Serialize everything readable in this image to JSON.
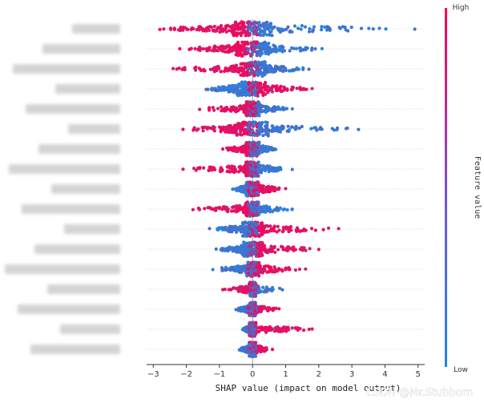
{
  "chart_data": {
    "type": "scatter",
    "subtype": "shap-beeswarm",
    "title": "",
    "xlabel": "SHAP value (impact on model output)",
    "ylabel": "",
    "xlim": [
      -3.2,
      5.2
    ],
    "xticks": [
      -3,
      -2,
      -1,
      0,
      1,
      2,
      3,
      4,
      5
    ],
    "grid": false,
    "colorbar": {
      "label": "Feature value",
      "high_label": "High",
      "low_label": "Low",
      "low_color": "#1e88e5",
      "high_color": "#ff0052"
    },
    "feature_labels_obscured": true,
    "features": [
      {
        "rank": 1,
        "min": -2.8,
        "max": 4.9,
        "core": [
          -0.6,
          0.6
        ],
        "high_side": "negative"
      },
      {
        "rank": 2,
        "min": -2.2,
        "max": 2.1,
        "core": [
          -0.5,
          0.5
        ],
        "high_side": "negative"
      },
      {
        "rank": 3,
        "min": -2.4,
        "max": 1.7,
        "core": [
          -0.4,
          0.4
        ],
        "high_side": "negative"
      },
      {
        "rank": 4,
        "min": -1.4,
        "max": 1.8,
        "core": [
          -0.5,
          0.4
        ],
        "high_side": "positive"
      },
      {
        "rank": 5,
        "min": -1.6,
        "max": 1.2,
        "core": [
          -0.2,
          0.2
        ],
        "high_side": "negative"
      },
      {
        "rank": 6,
        "min": -2.1,
        "max": 3.2,
        "core": [
          -0.5,
          0.5
        ],
        "high_side": "negative"
      },
      {
        "rank": 7,
        "min": -0.9,
        "max": 0.7,
        "core": [
          -0.2,
          0.2
        ],
        "high_side": "negative"
      },
      {
        "rank": 8,
        "min": -2.1,
        "max": 1.2,
        "core": [
          -0.2,
          0.2
        ],
        "high_side": "negative"
      },
      {
        "rank": 9,
        "min": -0.6,
        "max": 1.0,
        "core": [
          -0.2,
          0.2
        ],
        "high_side": "positive"
      },
      {
        "rank": 10,
        "min": -1.8,
        "max": 1.2,
        "core": [
          -0.2,
          0.2
        ],
        "high_side": "negative"
      },
      {
        "rank": 11,
        "min": -1.3,
        "max": 2.6,
        "core": [
          -0.3,
          0.3
        ],
        "high_side": "positive"
      },
      {
        "rank": 12,
        "min": -1.1,
        "max": 2.0,
        "core": [
          -0.3,
          0.3
        ],
        "high_side": "positive"
      },
      {
        "rank": 13,
        "min": -1.2,
        "max": 1.6,
        "core": [
          -0.2,
          0.2
        ],
        "high_side": "positive"
      },
      {
        "rank": 14,
        "min": -0.9,
        "max": 0.9,
        "core": [
          -0.1,
          0.1
        ],
        "high_side": "negative"
      },
      {
        "rank": 15,
        "min": -0.5,
        "max": 0.8,
        "core": [
          -0.1,
          0.1
        ],
        "high_side": "positive"
      },
      {
        "rank": 16,
        "min": -0.3,
        "max": 1.8,
        "core": [
          -0.1,
          0.1
        ],
        "high_side": "positive"
      },
      {
        "rank": 17,
        "min": -0.4,
        "max": 0.6,
        "core": [
          -0.1,
          0.1
        ],
        "high_side": "positive"
      }
    ]
  },
  "watermark": "CSDN @Mr.Stubborn"
}
